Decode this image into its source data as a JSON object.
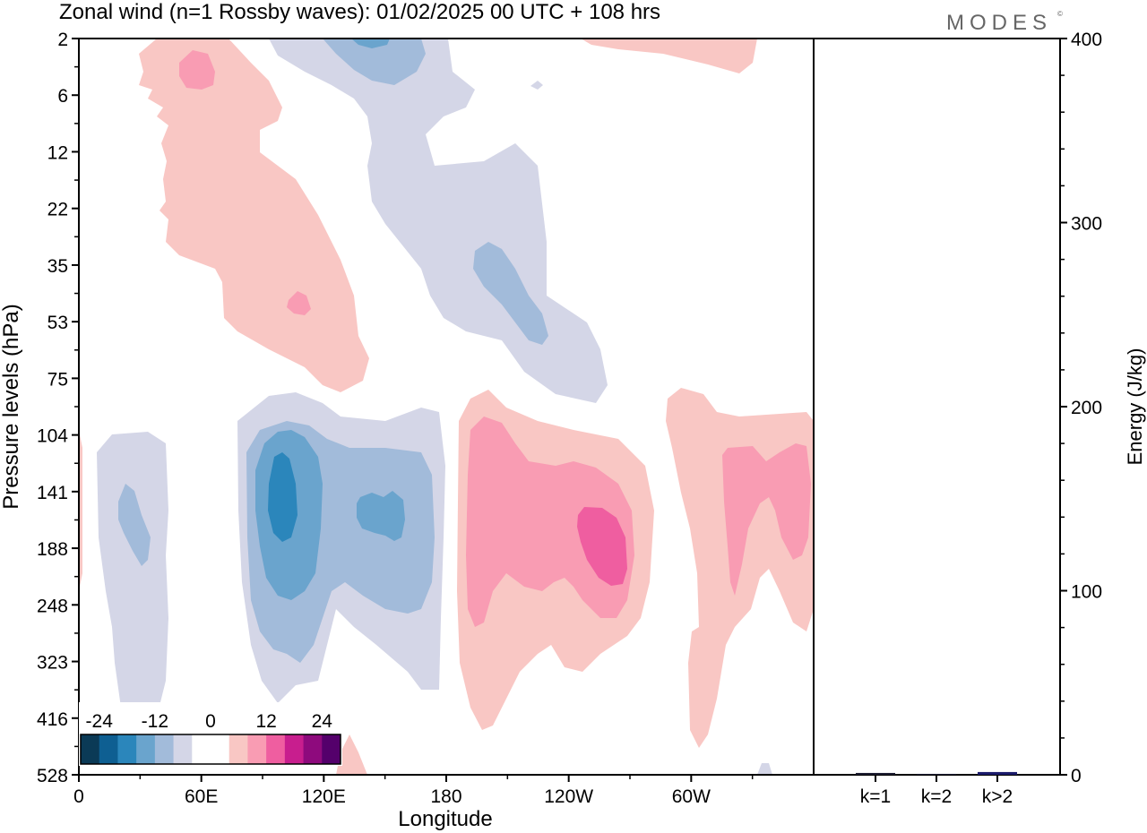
{
  "header": {
    "title": "Zonal wind (n=1 Rossby waves):  01/02/2025  00 UTC  + 108 hrs",
    "logo": "MODES"
  },
  "chart_data": [
    {
      "type": "heatmap",
      "xlabel": "Longitude",
      "ylabel": "Pressure levels (hPa)",
      "x_ticks": [
        "0",
        "60E",
        "120E",
        "180",
        "120W",
        "60W"
      ],
      "y_ticks": [
        "2",
        "6",
        "12",
        "22",
        "35",
        "53",
        "75",
        "104",
        "141",
        "188",
        "248",
        "323",
        "416",
        "528"
      ],
      "colorbar": {
        "labels": [
          "-24",
          "-12",
          "0",
          "12",
          "24"
        ],
        "colors": [
          "#0b3a56",
          "#0e5f92",
          "#2b86bb",
          "#6aa4cd",
          "#a2bbda",
          "#d4d6e7",
          "#ffffff",
          "#ffffff",
          "#f9c7c4",
          "#f99cb3",
          "#ef5ea0",
          "#c81e8e",
          "#8e0a7d",
          "#54006b"
        ]
      }
    },
    {
      "type": "bar",
      "categories": [
        "k=1",
        "k=2",
        "k>2"
      ],
      "values": [
        1,
        0.5,
        1.5
      ],
      "ylabel": "Energy (J/kg)",
      "ylim": [
        0,
        400
      ],
      "y_ticks": [
        "0",
        "100",
        "200",
        "300",
        "400"
      ],
      "colors": [
        "#1a1a2e",
        "#1a1a2e",
        "#1b1b6b"
      ]
    }
  ]
}
